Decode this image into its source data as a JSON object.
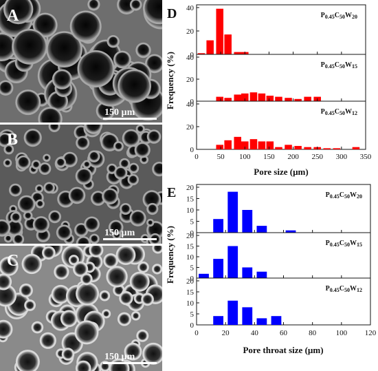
{
  "sem_panels": [
    {
      "label": "A",
      "scale_bar": "150 µm"
    },
    {
      "label": "B",
      "scale_bar": "150 µm"
    },
    {
      "label": "C",
      "scale_bar": "150 µm"
    }
  ],
  "chart_data": [
    {
      "type": "bar",
      "panel_label": "D",
      "xlabel": "Pore size (µm)",
      "ylabel": "Frequency (%)",
      "xlim": [
        0,
        350
      ],
      "xticks": [
        0,
        50,
        100,
        150,
        200,
        250,
        300,
        350
      ],
      "ylim": [
        0,
        40
      ],
      "yticks": [
        0,
        20,
        40
      ],
      "bar_width": 15,
      "color": "#ff0000",
      "series": [
        {
          "name": "P0.45C50W20",
          "x": [
            10,
            28,
            48,
            65,
            85,
            100
          ],
          "values": [
            1,
            12,
            39,
            17,
            2,
            2
          ]
        },
        {
          "name": "P0.45C50W15",
          "x": [
            48,
            65,
            85,
            100,
            118,
            135,
            152,
            170,
            190,
            210,
            230,
            250
          ],
          "values": [
            4,
            3,
            6,
            7,
            8,
            7,
            5,
            4,
            3,
            2,
            4,
            4
          ]
        },
        {
          "name": "P0.45C50W12",
          "x": [
            48,
            65,
            85,
            100,
            118,
            135,
            152,
            170,
            190,
            210,
            230,
            250,
            270,
            290,
            330
          ],
          "values": [
            4,
            8,
            11,
            7,
            9,
            7,
            7,
            2,
            4,
            3,
            2,
            2,
            1,
            1,
            2
          ]
        }
      ]
    },
    {
      "type": "bar",
      "panel_label": "E",
      "xlabel": "Pore throat size (µm)",
      "ylabel": "Frequency (%)",
      "xlim": [
        0,
        120
      ],
      "xticks": [
        0,
        20,
        40,
        60,
        80,
        100,
        120
      ],
      "ylim": [
        0,
        20
      ],
      "yticks": [
        0,
        5,
        10,
        15,
        20
      ],
      "bar_width": 7,
      "color": "#0000ff",
      "series": [
        {
          "name": "P0.45C50W20",
          "x": [
            15,
            25,
            35,
            45,
            65
          ],
          "values": [
            6,
            18,
            10,
            3,
            1
          ]
        },
        {
          "name": "P0.45C50W15",
          "x": [
            5,
            15,
            25,
            35,
            45
          ],
          "values": [
            2,
            9,
            15,
            5,
            3
          ]
        },
        {
          "name": "P0.45C50W12",
          "x": [
            15,
            25,
            35,
            45,
            55
          ],
          "values": [
            4,
            11,
            8,
            3,
            4
          ]
        }
      ]
    }
  ]
}
